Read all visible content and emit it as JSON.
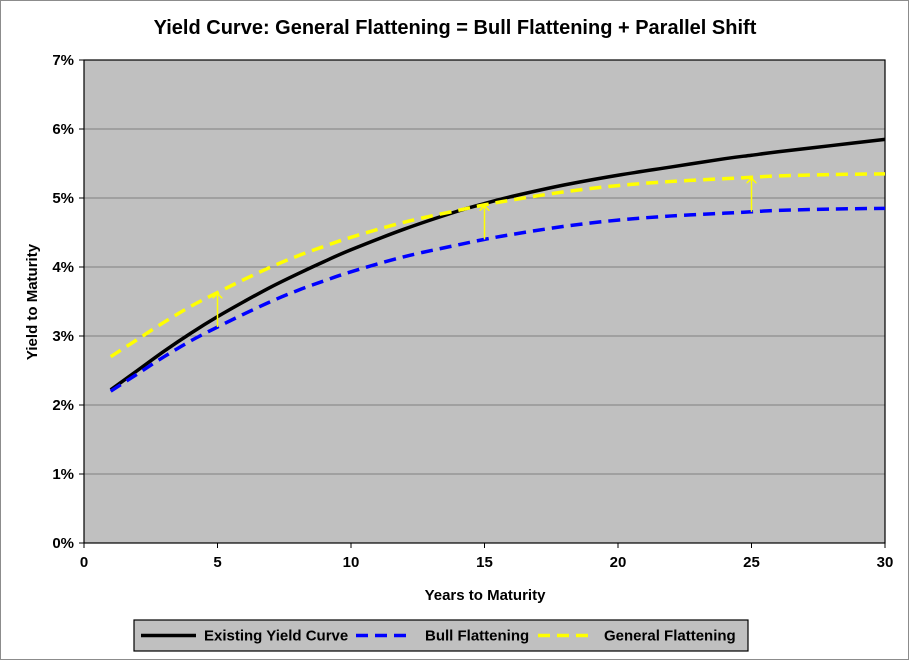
{
  "chart_data": {
    "type": "line",
    "title": "Yield Curve: General Flattening = Bull Flattening + Parallel Shift",
    "xlabel": "Years to Maturity",
    "ylabel": "Yield to Maturity",
    "xlim": [
      0,
      30
    ],
    "ylim": [
      0,
      7
    ],
    "x_ticks": [
      "0",
      "5",
      "10",
      "15",
      "20",
      "25",
      "30"
    ],
    "y_ticks": [
      "0%",
      "1%",
      "2%",
      "3%",
      "4%",
      "5%",
      "6%",
      "7%"
    ],
    "grid": "horizontal",
    "legend_position": "bottom",
    "plot_background": "#c0c0c0",
    "series": [
      {
        "name": "Existing Yield Curve",
        "color": "#000000",
        "style": "solid",
        "x": [
          1,
          2,
          3,
          4,
          5,
          6,
          7,
          8,
          9,
          10,
          12,
          14,
          15,
          16,
          18,
          20,
          22,
          24,
          25,
          26,
          28,
          30
        ],
        "y": [
          2.22,
          2.5,
          2.78,
          3.04,
          3.28,
          3.5,
          3.71,
          3.9,
          4.08,
          4.25,
          4.55,
          4.81,
          4.92,
          5.02,
          5.19,
          5.33,
          5.45,
          5.57,
          5.62,
          5.67,
          5.76,
          5.85
        ]
      },
      {
        "name": "Bull Flattening",
        "color": "#0000ff",
        "style": "dashed",
        "x": [
          1,
          2,
          3,
          4,
          5,
          6,
          7,
          8,
          9,
          10,
          12,
          14,
          15,
          16,
          18,
          20,
          22,
          24,
          25,
          26,
          28,
          30
        ],
        "y": [
          2.2,
          2.45,
          2.7,
          2.93,
          3.13,
          3.32,
          3.5,
          3.66,
          3.8,
          3.93,
          4.15,
          4.32,
          4.4,
          4.47,
          4.59,
          4.68,
          4.74,
          4.78,
          4.8,
          4.82,
          4.84,
          4.85
        ]
      },
      {
        "name": "General Flattening",
        "color": "#ffff00",
        "style": "dashed",
        "x": [
          1,
          2,
          3,
          4,
          5,
          6,
          7,
          8,
          9,
          10,
          12,
          14,
          15,
          16,
          18,
          20,
          22,
          24,
          25,
          26,
          28,
          30
        ],
        "y": [
          2.7,
          2.95,
          3.2,
          3.43,
          3.63,
          3.82,
          4.0,
          4.16,
          4.3,
          4.43,
          4.65,
          4.82,
          4.9,
          4.97,
          5.09,
          5.18,
          5.24,
          5.28,
          5.3,
          5.32,
          5.34,
          5.35
        ]
      }
    ],
    "annotations": [
      {
        "type": "arrow",
        "x": 5,
        "from": 3.13,
        "to": 3.63,
        "color": "#ffff00"
      },
      {
        "type": "arrow",
        "x": 15,
        "from": 4.4,
        "to": 4.9,
        "color": "#ffff00"
      },
      {
        "type": "arrow",
        "x": 25,
        "from": 4.8,
        "to": 5.3,
        "color": "#ffff00"
      }
    ]
  }
}
